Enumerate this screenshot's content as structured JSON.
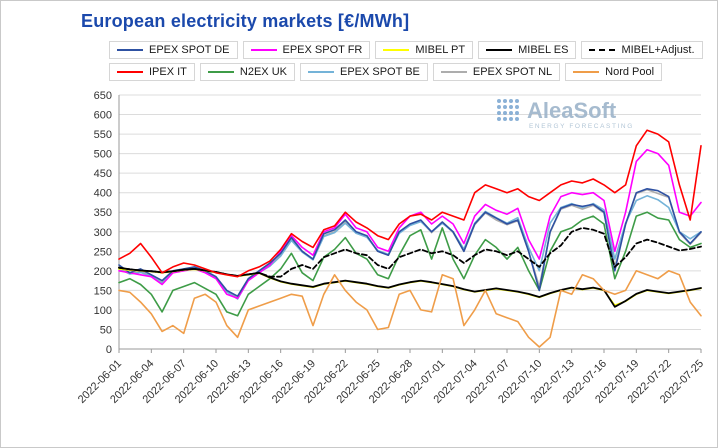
{
  "title": "European electricity markets [€/MWh]",
  "watermark": {
    "name": "AleaSoft",
    "subtitle": "ENERGY FORECASTING"
  },
  "chart_data": {
    "type": "line",
    "title": "European electricity markets [€/MWh]",
    "xlabel": "",
    "ylabel": "",
    "ylim": [
      0,
      650
    ],
    "ytick_step": 50,
    "tick_every": 3,
    "grid": true,
    "legend_position": "top",
    "x": [
      "2022-06-01",
      "2022-06-02",
      "2022-06-03",
      "2022-06-04",
      "2022-06-05",
      "2022-06-06",
      "2022-06-07",
      "2022-06-08",
      "2022-06-09",
      "2022-06-10",
      "2022-06-11",
      "2022-06-12",
      "2022-06-13",
      "2022-06-14",
      "2022-06-15",
      "2022-06-16",
      "2022-06-17",
      "2022-06-18",
      "2022-06-19",
      "2022-06-20",
      "2022-06-21",
      "2022-06-22",
      "2022-06-23",
      "2022-06-24",
      "2022-06-25",
      "2022-06-26",
      "2022-06-27",
      "2022-06-28",
      "2022-06-29",
      "2022-06-30",
      "2022-07-01",
      "2022-07-02",
      "2022-07-03",
      "2022-07-04",
      "2022-07-05",
      "2022-07-06",
      "2022-07-07",
      "2022-07-08",
      "2022-07-09",
      "2022-07-10",
      "2022-07-11",
      "2022-07-12",
      "2022-07-13",
      "2022-07-14",
      "2022-07-15",
      "2022-07-16",
      "2022-07-17",
      "2022-07-18",
      "2022-07-19",
      "2022-07-20",
      "2022-07-21",
      "2022-07-22",
      "2022-07-23",
      "2022-07-24",
      "2022-07-25"
    ],
    "series": [
      {
        "name": "EPEX SPOT DE",
        "color": "#2E51A2",
        "dash": false,
        "legend_row": 1,
        "z": 5,
        "values": [
          215,
          195,
          205,
          190,
          175,
          200,
          205,
          210,
          200,
          185,
          150,
          135,
          180,
          200,
          220,
          245,
          285,
          250,
          230,
          295,
          305,
          330,
          300,
          290,
          250,
          240,
          300,
          320,
          330,
          300,
          325,
          300,
          250,
          320,
          350,
          335,
          320,
          330,
          250,
          150,
          300,
          360,
          370,
          365,
          370,
          350,
          200,
          320,
          400,
          410,
          405,
          390,
          300,
          270,
          300
        ]
      },
      {
        "name": "EPEX SPOT FR",
        "color": "#FF00FF",
        "dash": false,
        "legend_row": 1,
        "z": 4,
        "values": [
          200,
          195,
          190,
          185,
          165,
          195,
          200,
          205,
          195,
          180,
          140,
          130,
          175,
          195,
          215,
          250,
          290,
          260,
          240,
          300,
          310,
          345,
          310,
          300,
          260,
          250,
          310,
          340,
          350,
          320,
          340,
          320,
          270,
          340,
          370,
          355,
          345,
          360,
          280,
          230,
          340,
          390,
          400,
          395,
          400,
          380,
          250,
          350,
          480,
          510,
          500,
          470,
          350,
          340,
          375
        ]
      },
      {
        "name": "MIBEL PT",
        "color": "#FFFF00",
        "dash": false,
        "legend_row": 1,
        "z": 6,
        "values": [
          205,
          202,
          200,
          198,
          195,
          198,
          202,
          204,
          200,
          196,
          190,
          186,
          190,
          194,
          182,
          172,
          166,
          162,
          158,
          166,
          170,
          174,
          170,
          166,
          160,
          156,
          164,
          170,
          174,
          170,
          165,
          160,
          152,
          146,
          150,
          154,
          150,
          146,
          140,
          132,
          142,
          150,
          156,
          152,
          156,
          150,
          112,
          122,
          140,
          150,
          146,
          142,
          146,
          150,
          155
        ]
      },
      {
        "name": "MIBEL ES",
        "color": "#000000",
        "dash": false,
        "legend_row": 1,
        "z": 7,
        "values": [
          208,
          204,
          201,
          199,
          196,
          199,
          203,
          205,
          201,
          197,
          191,
          187,
          191,
          195,
          183,
          173,
          167,
          163,
          159,
          167,
          171,
          175,
          171,
          167,
          161,
          157,
          165,
          171,
          175,
          171,
          166,
          161,
          153,
          147,
          151,
          155,
          151,
          147,
          141,
          133,
          143,
          151,
          157,
          153,
          157,
          151,
          108,
          123,
          141,
          151,
          147,
          143,
          147,
          151,
          156
        ]
      },
      {
        "name": "MIBEL+Adjust.",
        "color": "#000000",
        "dash": true,
        "legend_row": 1,
        "z": 8,
        "values": [
          208,
          204,
          201,
          199,
          196,
          199,
          203,
          205,
          201,
          197,
          191,
          187,
          191,
          195,
          185,
          185,
          205,
          215,
          205,
          235,
          245,
          255,
          245,
          240,
          215,
          205,
          235,
          245,
          255,
          245,
          250,
          240,
          220,
          240,
          255,
          250,
          240,
          250,
          230,
          210,
          245,
          265,
          300,
          310,
          305,
          295,
          210,
          235,
          270,
          280,
          272,
          262,
          252,
          256,
          262
        ]
      },
      {
        "name": "IPEX IT",
        "color": "#FF0000",
        "dash": false,
        "legend_row": 2,
        "z": 10,
        "values": [
          230,
          245,
          270,
          235,
          195,
          210,
          220,
          215,
          205,
          195,
          190,
          185,
          200,
          210,
          225,
          255,
          295,
          275,
          260,
          305,
          315,
          350,
          325,
          310,
          290,
          280,
          320,
          340,
          345,
          330,
          350,
          340,
          330,
          400,
          420,
          410,
          400,
          410,
          390,
          380,
          400,
          420,
          430,
          425,
          435,
          420,
          400,
          420,
          520,
          560,
          550,
          530,
          420,
          330,
          520
        ]
      },
      {
        "name": "N2EX UK",
        "color": "#3E9C47",
        "dash": false,
        "legend_row": 2,
        "z": 3,
        "values": [
          170,
          180,
          165,
          140,
          95,
          150,
          160,
          170,
          155,
          140,
          95,
          85,
          140,
          160,
          180,
          205,
          245,
          195,
          175,
          235,
          255,
          285,
          245,
          230,
          190,
          180,
          240,
          290,
          305,
          230,
          310,
          230,
          180,
          240,
          280,
          260,
          230,
          260,
          200,
          150,
          250,
          300,
          310,
          330,
          340,
          320,
          180,
          250,
          340,
          350,
          335,
          330,
          280,
          260,
          270
        ]
      },
      {
        "name": "EPEX SPOT BE",
        "color": "#74B3D8",
        "dash": false,
        "legend_row": 2,
        "z": 2,
        "values": [
          205,
          192,
          196,
          186,
          168,
          196,
          201,
          206,
          196,
          181,
          146,
          128,
          176,
          196,
          212,
          238,
          278,
          248,
          228,
          288,
          298,
          322,
          296,
          286,
          252,
          242,
          296,
          316,
          326,
          300,
          322,
          300,
          256,
          322,
          352,
          336,
          322,
          336,
          260,
          200,
          322,
          362,
          372,
          362,
          372,
          356,
          230,
          322,
          380,
          392,
          382,
          362,
          300,
          282,
          300
        ]
      },
      {
        "name": "EPEX SPOT NL",
        "color": "#ADADAD",
        "dash": false,
        "legend_row": 2,
        "z": 1,
        "values": [
          210,
          194,
          199,
          189,
          172,
          198,
          203,
          208,
          198,
          183,
          148,
          130,
          178,
          198,
          218,
          240,
          280,
          250,
          230,
          290,
          300,
          326,
          298,
          288,
          250,
          240,
          298,
          318,
          328,
          298,
          324,
          298,
          250,
          318,
          348,
          330,
          318,
          328,
          250,
          160,
          298,
          358,
          368,
          358,
          368,
          348,
          210,
          318,
          398,
          408,
          398,
          388,
          298,
          268,
          298
        ]
      },
      {
        "name": "Nord Pool",
        "color": "#EF9D49",
        "dash": false,
        "legend_row": 2,
        "z": 9,
        "values": [
          150,
          145,
          120,
          90,
          45,
          60,
          40,
          130,
          140,
          120,
          60,
          30,
          100,
          110,
          120,
          130,
          140,
          135,
          60,
          140,
          190,
          150,
          120,
          100,
          50,
          55,
          140,
          150,
          100,
          95,
          190,
          180,
          60,
          100,
          150,
          90,
          80,
          70,
          30,
          5,
          30,
          150,
          140,
          190,
          180,
          150,
          140,
          150,
          200,
          190,
          180,
          200,
          190,
          120,
          85
        ]
      }
    ]
  }
}
